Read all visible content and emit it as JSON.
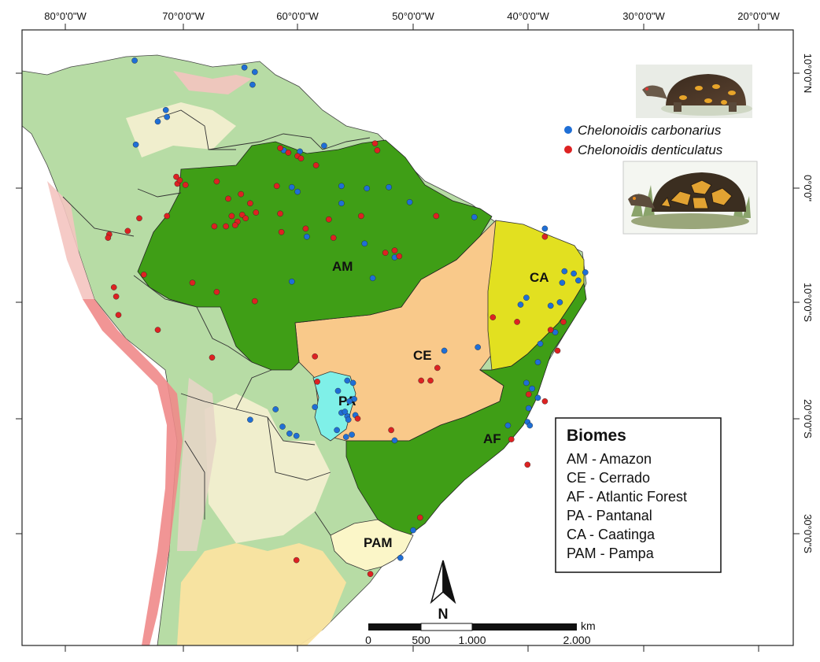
{
  "graticule": {
    "longitudes": [
      "80°0'0\"W",
      "70°0'0\"W",
      "60°0'0\"W",
      "50°0'0\"W",
      "40°0'0\"W",
      "30°0'0\"W",
      "20°0'0\"W"
    ],
    "latitudes": [
      "10°0'0\"N",
      "0°0'0\"",
      "10°0'0\"S",
      "20°0'0\"S",
      "30°0'0\"S"
    ]
  },
  "biome_labels": [
    "AM",
    "CE",
    "AF",
    "PA",
    "CA",
    "PAM"
  ],
  "species_legend": [
    {
      "name": "Chelonoidis carbonarius",
      "color": "#1f6fd6"
    },
    {
      "name": "Chelonoidis denticulatus",
      "color": "#dd2222"
    }
  ],
  "biomes_legend": {
    "title": "Biomes",
    "items": [
      "AM - Amazon",
      "CE - Cerrado",
      "AF - Atlantic Forest",
      "PA - Pantanal",
      "CA - Caatinga",
      "PAM - Pampa"
    ]
  },
  "scale_bar": {
    "unit": "km",
    "labels": [
      "0",
      "500",
      "1.000",
      "2.000"
    ]
  },
  "north_arrow": {
    "label": "N"
  },
  "colors": {
    "amazon": "#3f9e16",
    "cerrado": "#f9c98a",
    "atlantic_forest": "#3f9e16",
    "pantanal": "#7ff0e8",
    "caatinga": "#e2e020",
    "pampa": "#fbf6c8",
    "background_land": "#b7dca5",
    "andes_red": "#f08a8a",
    "sand": "#fae3a0"
  },
  "occurrences": {
    "carbonarius": [
      [
        -74.0,
        11.1
      ],
      [
        -64.5,
        10.5
      ],
      [
        -63.6,
        10.1
      ],
      [
        -63.8,
        9.0
      ],
      [
        -71.3,
        6.8
      ],
      [
        -71.2,
        6.2
      ],
      [
        -72.0,
        5.8
      ],
      [
        -73.9,
        3.8
      ],
      [
        -61.1,
        3.3
      ],
      [
        -59.7,
        3.2
      ],
      [
        -57.6,
        3.7
      ],
      [
        -60.4,
        0.1
      ],
      [
        -59.9,
        -0.3
      ],
      [
        -56.1,
        0.2
      ],
      [
        -53.9,
        0.0
      ],
      [
        -52.0,
        0.1
      ],
      [
        -56.1,
        -1.3
      ],
      [
        -50.2,
        -1.2
      ],
      [
        -44.6,
        -2.5
      ],
      [
        -59.1,
        -4.2
      ],
      [
        -54.1,
        -4.8
      ],
      [
        -51.5,
        -6.0
      ],
      [
        -53.4,
        -7.8
      ],
      [
        -60.4,
        -8.1
      ],
      [
        -38.5,
        -3.5
      ],
      [
        -36.8,
        -7.2
      ],
      [
        -36.0,
        -7.4
      ],
      [
        -35.0,
        -7.3
      ],
      [
        -35.6,
        -8.0
      ],
      [
        -37.0,
        -8.2
      ],
      [
        -40.1,
        -9.5
      ],
      [
        -40.6,
        -10.1
      ],
      [
        -37.2,
        -9.9
      ],
      [
        -38.0,
        -10.2
      ],
      [
        -37.6,
        -12.5
      ],
      [
        -38.9,
        -13.5
      ],
      [
        -44.3,
        -13.8
      ],
      [
        -47.2,
        -14.1
      ],
      [
        -39.1,
        -15.1
      ],
      [
        -40.1,
        -16.9
      ],
      [
        -39.6,
        -17.4
      ],
      [
        -39.1,
        -18.2
      ],
      [
        -39.9,
        -19.1
      ],
      [
        -40.0,
        -20.3
      ],
      [
        -39.8,
        -20.6
      ],
      [
        -41.7,
        -20.6
      ],
      [
        -55.6,
        -16.7
      ],
      [
        -55.1,
        -16.9
      ],
      [
        -56.4,
        -17.6
      ],
      [
        -55.0,
        -18.3
      ],
      [
        -55.4,
        -18.5
      ],
      [
        -56.1,
        -19.5
      ],
      [
        -55.6,
        -19.8
      ],
      [
        -55.8,
        -19.4
      ],
      [
        -54.9,
        -19.7
      ],
      [
        -55.5,
        -20.1
      ],
      [
        -55.2,
        -21.4
      ],
      [
        -55.7,
        -21.6
      ],
      [
        -56.5,
        -21.0
      ],
      [
        -51.5,
        -21.9
      ],
      [
        -58.4,
        -19.0
      ],
      [
        -61.8,
        -19.2
      ],
      [
        -64.0,
        -20.1
      ],
      [
        -61.2,
        -20.7
      ],
      [
        -60.6,
        -21.3
      ],
      [
        -60.0,
        -21.5
      ],
      [
        -49.9,
        -29.7
      ],
      [
        -51.0,
        -32.1
      ]
    ],
    "denticulatus": [
      [
        -53.2,
        3.9
      ],
      [
        -53.0,
        3.3
      ],
      [
        -61.4,
        3.5
      ],
      [
        -60.7,
        3.1
      ],
      [
        -59.9,
        2.8
      ],
      [
        -59.6,
        2.6
      ],
      [
        -58.3,
        2.0
      ],
      [
        -61.7,
        0.2
      ],
      [
        -70.3,
        0.4
      ],
      [
        -70.1,
        0.7
      ],
      [
        -70.4,
        1.0
      ],
      [
        -69.6,
        0.3
      ],
      [
        -66.9,
        0.6
      ],
      [
        -65.9,
        -0.9
      ],
      [
        -64.8,
        -0.5
      ],
      [
        -64.0,
        -1.3
      ],
      [
        -64.7,
        -2.3
      ],
      [
        -64.4,
        -2.6
      ],
      [
        -65.6,
        -2.4
      ],
      [
        -65.1,
        -2.9
      ],
      [
        -65.3,
        -3.2
      ],
      [
        -66.1,
        -3.3
      ],
      [
        -67.1,
        -3.3
      ],
      [
        -63.5,
        -2.1
      ],
      [
        -61.4,
        -2.2
      ],
      [
        -61.3,
        -3.8
      ],
      [
        -59.2,
        -3.5
      ],
      [
        -57.2,
        -2.7
      ],
      [
        -54.4,
        -2.4
      ],
      [
        -56.8,
        -4.3
      ],
      [
        -51.5,
        -5.4
      ],
      [
        -52.3,
        -5.6
      ],
      [
        -51.1,
        -5.9
      ],
      [
        -47.9,
        -2.4
      ],
      [
        -71.2,
        -2.4
      ],
      [
        -73.6,
        -2.6
      ],
      [
        -76.2,
        -4.0
      ],
      [
        -76.3,
        -4.3
      ],
      [
        -74.6,
        -3.7
      ],
      [
        -75.8,
        -8.6
      ],
      [
        -75.6,
        -9.4
      ],
      [
        -75.4,
        -11.0
      ],
      [
        -73.2,
        -7.5
      ],
      [
        -69.0,
        -8.2
      ],
      [
        -66.9,
        -9.0
      ],
      [
        -63.6,
        -9.8
      ],
      [
        -72.0,
        -12.3
      ],
      [
        -67.3,
        -14.7
      ],
      [
        -58.2,
        -16.8
      ],
      [
        -58.4,
        -14.6
      ],
      [
        -54.7,
        -20.0
      ],
      [
        -51.8,
        -21.0
      ],
      [
        -48.4,
        -16.7
      ],
      [
        -49.2,
        -16.7
      ],
      [
        -47.8,
        -15.6
      ],
      [
        -43.0,
        -11.2
      ],
      [
        -40.9,
        -11.6
      ],
      [
        -38.0,
        -12.3
      ],
      [
        -38.5,
        -4.2
      ],
      [
        -39.9,
        -17.9
      ],
      [
        -40.0,
        -24.0
      ],
      [
        -36.9,
        -11.6
      ],
      [
        -37.4,
        -14.1
      ],
      [
        -60.0,
        -32.3
      ],
      [
        -53.6,
        -33.5
      ],
      [
        -49.3,
        -28.6
      ],
      [
        -38.5,
        -18.5
      ],
      [
        -41.4,
        -21.8
      ]
    ]
  }
}
